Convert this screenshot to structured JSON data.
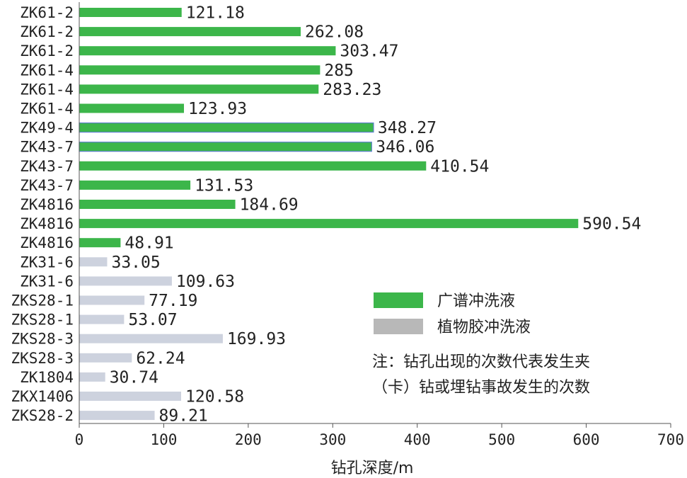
{
  "chart_data": {
    "type": "bar",
    "orientation": "horizontal",
    "categories": [
      "ZK61-2",
      "ZK61-2",
      "ZK61-2",
      "ZK61-4",
      "ZK61-4",
      "ZK61-4",
      "ZK49-4",
      "ZK43-7",
      "ZK43-7",
      "ZK43-7",
      "ZK4816",
      "ZK4816",
      "ZK4816",
      "ZK31-6",
      "ZK31-6",
      "ZKS28-1",
      "ZKS28-1",
      "ZKS28-3",
      "ZKS28-3",
      "ZK1804",
      "ZKX1406",
      "ZKS28-2"
    ],
    "values": [
      121.18,
      262.08,
      303.47,
      285,
      283.23,
      123.93,
      348.27,
      346.06,
      410.54,
      131.53,
      184.69,
      590.54,
      48.91,
      33.05,
      109.63,
      77.19,
      53.07,
      169.93,
      62.24,
      30.74,
      120.58,
      89.21
    ],
    "value_labels": [
      "121.18",
      "262.08",
      "303.47",
      "285",
      "283.23",
      "123.93",
      "348.27",
      "346.06",
      "410.54",
      "131.53",
      "184.69",
      "590.54",
      "48.91",
      "33.05",
      "109.63",
      "77.19",
      "53.07",
      "169.93",
      "62.24",
      "30.74",
      "120.58",
      "89.21"
    ],
    "group": [
      "A",
      "A",
      "A",
      "A",
      "A",
      "A",
      "A",
      "A",
      "A",
      "A",
      "A",
      "A",
      "A",
      "B",
      "B",
      "B",
      "B",
      "B",
      "B",
      "B",
      "B",
      "B"
    ],
    "series": [
      {
        "key": "A",
        "name": "广谱冲洗液",
        "color": "#3cb64a",
        "legend_color": "#3cb64a"
      },
      {
        "key": "B",
        "name": "植物胶冲洗液",
        "color": "#cdd2de",
        "legend_color": "#b8b8b8"
      }
    ],
    "xlabel": "钻孔深度/m",
    "xlim": [
      0,
      700
    ],
    "xticks": [
      "0",
      "100",
      "200",
      "300",
      "400",
      "500",
      "600",
      "700"
    ],
    "note": [
      "注：钻孔出现的次数代表发生夹",
      "（卡）钻或埋钻事故发生的次数"
    ],
    "grid": false,
    "legend_position": "right-middle"
  }
}
